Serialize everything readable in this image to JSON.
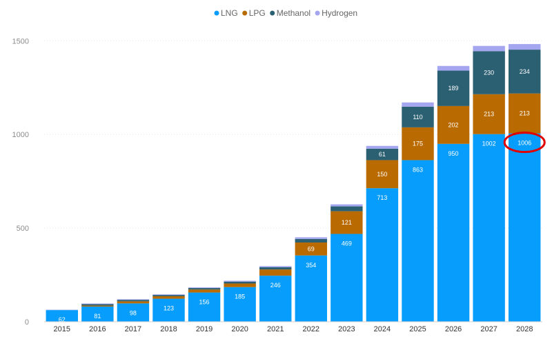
{
  "chart_data": {
    "type": "bar",
    "stacked": true,
    "categories": [
      "2015",
      "2016",
      "2017",
      "2018",
      "2019",
      "2020",
      "2021",
      "2022",
      "2023",
      "2024",
      "2025",
      "2026",
      "2027",
      "2028"
    ],
    "series": [
      {
        "name": "LNG",
        "color": "#069dfc",
        "values": [
          62,
          81,
          98,
          123,
          156,
          185,
          246,
          354,
          469,
          713,
          863,
          950,
          1002,
          1006
        ]
      },
      {
        "name": "LPG",
        "color": "#b96a00",
        "values": [
          0,
          5,
          11,
          13,
          16,
          19,
          33,
          69,
          121,
          150,
          175,
          202,
          213,
          213
        ]
      },
      {
        "name": "Methanol",
        "color": "#2b5f72",
        "values": [
          0,
          8,
          8,
          7,
          8,
          10,
          12,
          19,
          26,
          61,
          110,
          189,
          230,
          234
        ]
      },
      {
        "name": "Hydrogen",
        "color": "#a5a6f0",
        "values": [
          2,
          3,
          3,
          3,
          3,
          5,
          6,
          9,
          11,
          15,
          23,
          25,
          28,
          30
        ]
      }
    ],
    "data_labels": {
      "LNG": [
        "62",
        "81",
        "98",
        "123",
        "156",
        "185",
        "246",
        "354",
        "469",
        "713",
        "863",
        "950",
        "1002",
        "1006"
      ],
      "LPG": [
        "",
        "",
        "",
        "",
        "",
        "",
        "",
        "69",
        "121",
        "150",
        "175",
        "202",
        "213",
        "213"
      ],
      "Methanol": [
        "",
        "",
        "",
        "",
        "",
        "",
        "",
        "",
        "",
        "61",
        "110",
        "189",
        "230",
        "234"
      ]
    },
    "y_ticks": [
      "0",
      "500",
      "1000",
      "1500"
    ],
    "ylim": [
      0,
      1560
    ],
    "grid": true,
    "legend_position": "top-center",
    "highlight": {
      "category": "2028",
      "series": "LNG",
      "color": "#e00000"
    }
  }
}
